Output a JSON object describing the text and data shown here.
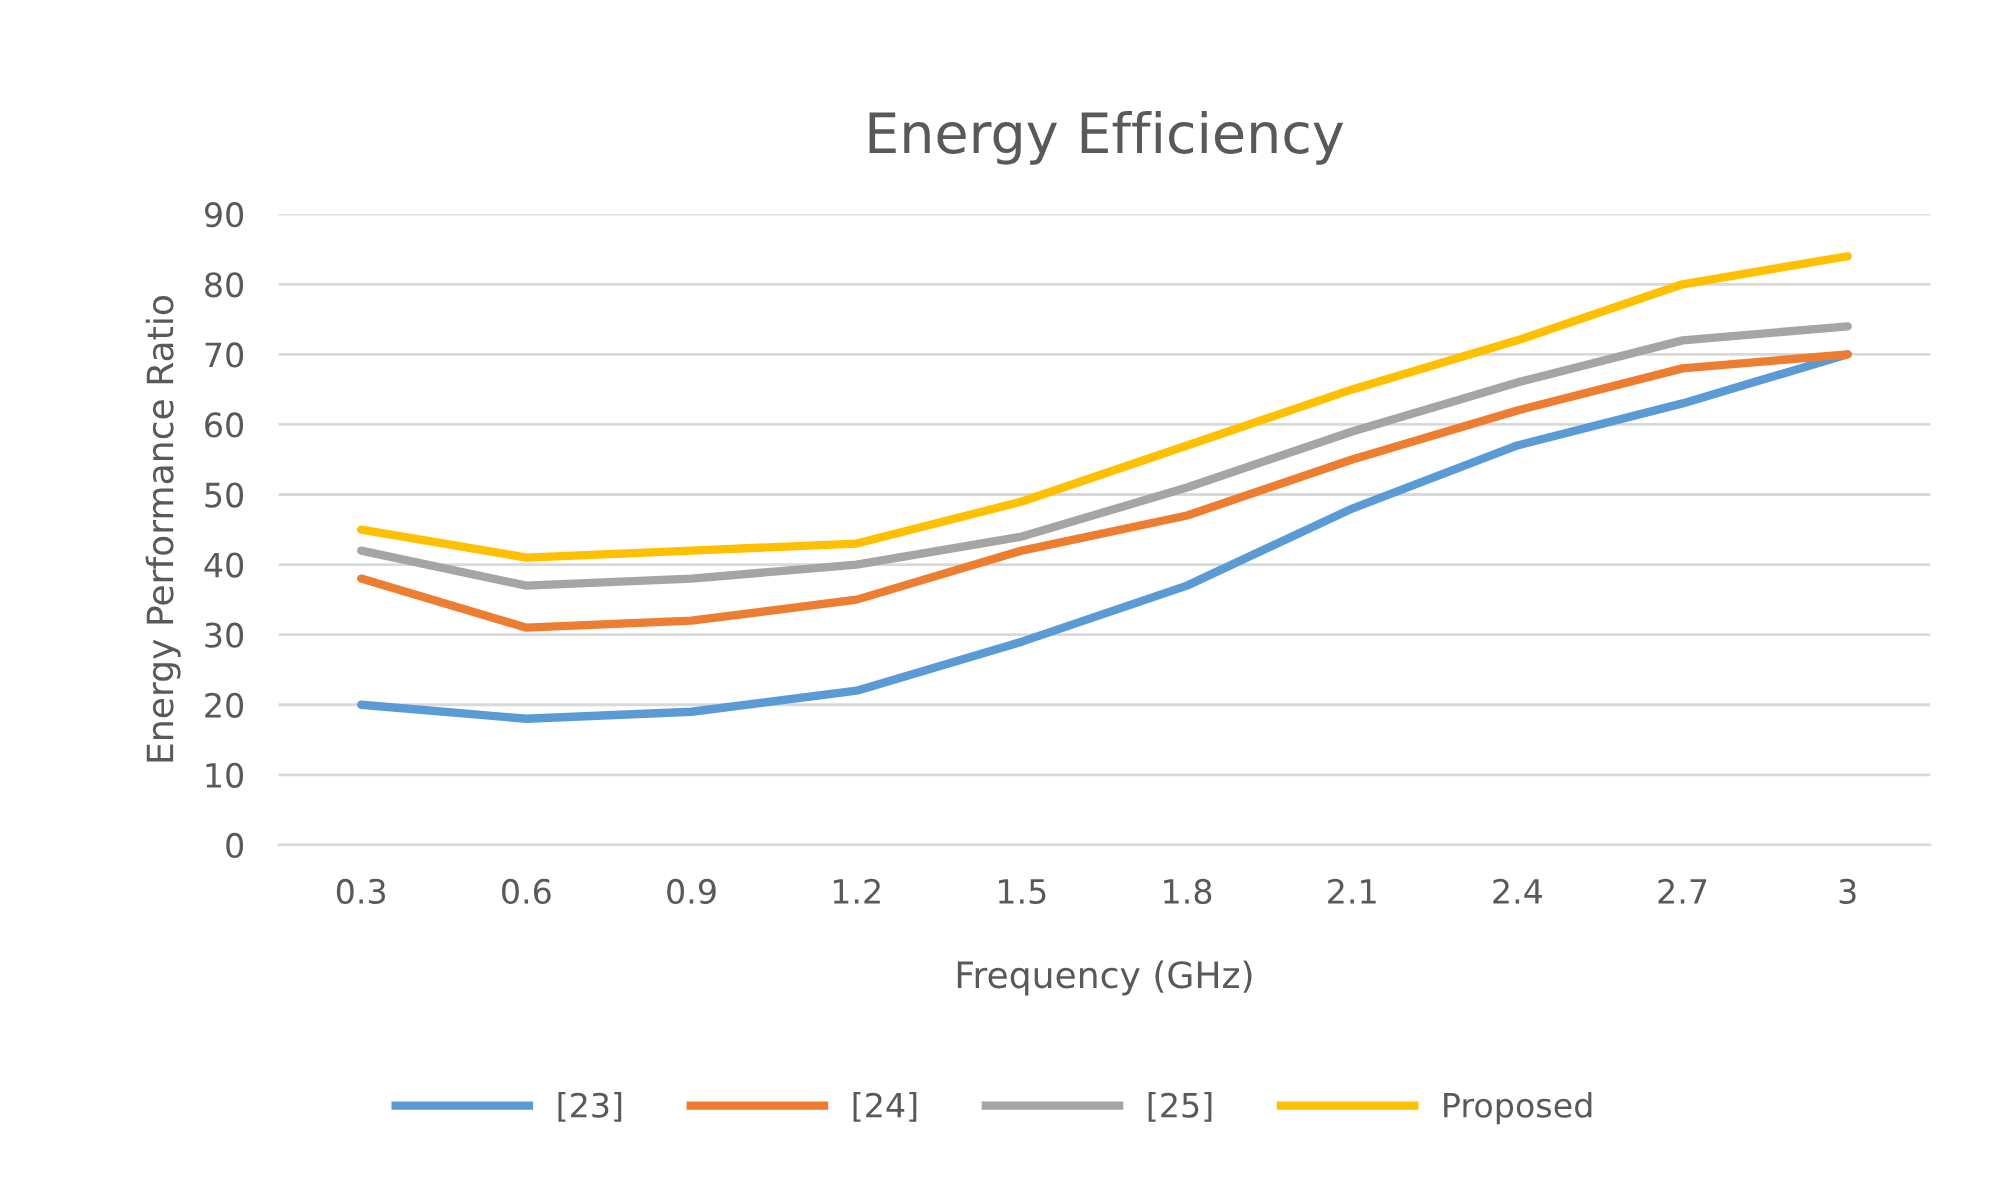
{
  "chart_data": {
    "type": "line",
    "title": "Energy Efficiency",
    "xlabel": "Frequency (GHz)",
    "ylabel": "Energy Performance Ratio",
    "categories": [
      "0.3",
      "0.6",
      "0.9",
      "1.2",
      "1.5",
      "1.8",
      "2.1",
      "2.4",
      "2.7",
      "3"
    ],
    "series": [
      {
        "name": "[23]",
        "color": "#5b9bd5",
        "values": [
          20,
          18,
          19,
          22,
          29,
          37,
          48,
          57,
          63,
          70
        ]
      },
      {
        "name": "[24]",
        "color": "#ed7d31",
        "values": [
          38,
          31,
          32,
          35,
          42,
          47,
          55,
          62,
          68,
          70
        ]
      },
      {
        "name": "[25]",
        "color": "#a5a5a5",
        "values": [
          42,
          37,
          38,
          40,
          44,
          51,
          59,
          66,
          72,
          74
        ]
      },
      {
        "name": "Proposed",
        "color": "#ffc000",
        "values": [
          45,
          41,
          42,
          43,
          49,
          57,
          65,
          72,
          80,
          84
        ]
      }
    ],
    "ylim": [
      0,
      90
    ],
    "yticks": [
      0,
      10,
      20,
      30,
      40,
      50,
      60,
      70,
      80,
      90
    ],
    "grid": "y",
    "legend": "bottom",
    "marker": "none",
    "line_style": "solid"
  }
}
